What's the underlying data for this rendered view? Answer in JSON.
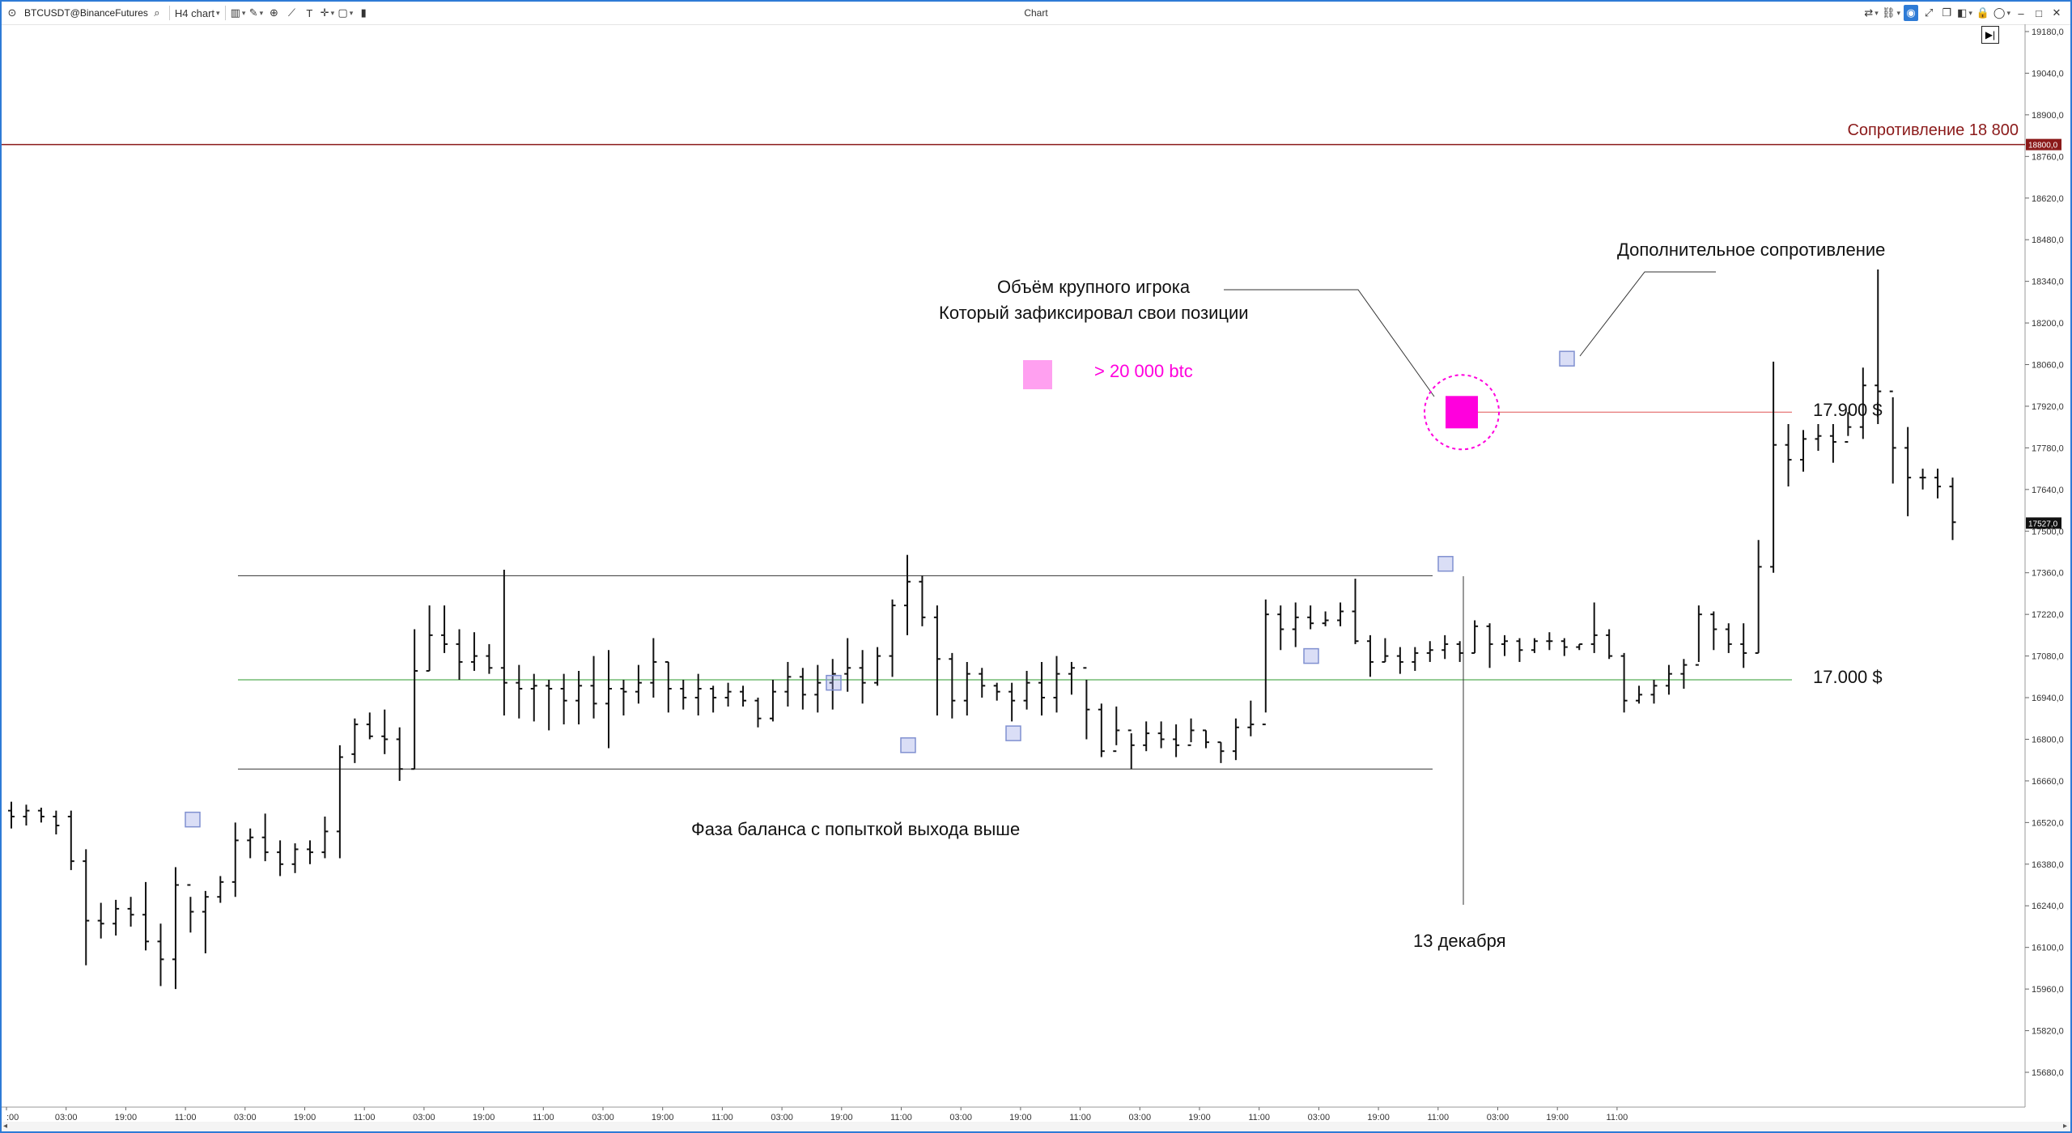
{
  "toolbar": {
    "symbol": "BTCUSDT@BinanceFutures",
    "timeframe": "H4 chart",
    "window_title": "Chart"
  },
  "annotations": {
    "resistance_label": "Сопротивление 18 800",
    "resistance_price_tag": "18800,0",
    "big_player_line1": "Объём крупного игрока",
    "big_player_line2": "Который зафиксировал свои позиции",
    "legend_volume": "> 20 000 btc",
    "extra_resistance": "Дополнительное сопротивление",
    "level_17900": "17.900 $",
    "level_17000": "17.000 $",
    "balance_phase": "Фаза баланса с попыткой выхода выше",
    "date_label": "13 декабря",
    "current_price_tag": "17527,0"
  },
  "colors": {
    "accent": "#2e7bd6",
    "resistance_line": "#8b1a1a",
    "red_level": "#e05555",
    "green_level": "#2e9a2e",
    "big_volume": "#ff00dd",
    "legend_volume": "#ffa0f0",
    "volume_marker": "#8090d0"
  },
  "chart_data": {
    "type": "ohlc",
    "interval": "H4",
    "y_axis_ticks": [
      "19180,0",
      "19040,0",
      "18900,0",
      "18760,0",
      "18620,0",
      "18480,0",
      "18340,0",
      "18200,0",
      "18060,0",
      "17920,0",
      "17780,0",
      "17640,0",
      "17500,0",
      "17360,0",
      "17220,0",
      "17080,0",
      "16940,0",
      "16800,0",
      "16660,0",
      "16520,0",
      "16380,0",
      "16240,0",
      "16100,0",
      "15960,0",
      "15820,0",
      "15680,0"
    ],
    "x_axis_ticks": [
      ":00",
      "03:00",
      "19:00",
      "11:00",
      "03:00",
      "19:00",
      "11:00",
      "03:00",
      "19:00",
      "11:00",
      "03:00",
      "19:00",
      "11:00",
      "03:00",
      "19:00",
      "11:00",
      "03:00",
      "19:00",
      "11:00",
      "03:00",
      "19:00",
      "11:00",
      "03:00",
      "19:00",
      "11:00",
      "03:00",
      "19:00",
      "11:00"
    ],
    "levels": [
      {
        "price": 18800,
        "name": "Сопротивление 18 800"
      },
      {
        "price": 17900,
        "name": "17.900 $"
      },
      {
        "price": 17000,
        "name": "17.000 $"
      }
    ],
    "balance_range": {
      "high": 17350,
      "low": 16700
    },
    "bars": [
      [
        16560,
        16590,
        16500,
        16540
      ],
      [
        16540,
        16580,
        16510,
        16560
      ],
      [
        16560,
        16570,
        16520,
        16540
      ],
      [
        16540,
        16560,
        16480,
        16510
      ],
      [
        16540,
        16560,
        16360,
        16390
      ],
      [
        16390,
        16430,
        16040,
        16190
      ],
      [
        16190,
        16250,
        16130,
        16180
      ],
      [
        16180,
        16260,
        16140,
        16230
      ],
      [
        16230,
        16270,
        16170,
        16210
      ],
      [
        16210,
        16320,
        16090,
        16120
      ],
      [
        16120,
        16180,
        15970,
        16060
      ],
      [
        16060,
        16370,
        15960,
        16310
      ],
      [
        16310,
        16270,
        16150,
        16220
      ],
      [
        16220,
        16290,
        16080,
        16270
      ],
      [
        16270,
        16340,
        16250,
        16320
      ],
      [
        16320,
        16520,
        16270,
        16460
      ],
      [
        16460,
        16500,
        16400,
        16470
      ],
      [
        16470,
        16550,
        16390,
        16420
      ],
      [
        16420,
        16460,
        16340,
        16380
      ],
      [
        16380,
        16450,
        16350,
        16430
      ],
      [
        16430,
        16460,
        16380,
        16420
      ],
      [
        16420,
        16540,
        16400,
        16490
      ],
      [
        16490,
        16780,
        16400,
        16740
      ],
      [
        16750,
        16870,
        16720,
        16850
      ],
      [
        16850,
        16890,
        16800,
        16810
      ],
      [
        16810,
        16900,
        16750,
        16800
      ],
      [
        16800,
        16840,
        16660,
        16700
      ],
      [
        16700,
        17170,
        16700,
        17030
      ],
      [
        17030,
        17250,
        17030,
        17150
      ],
      [
        17150,
        17250,
        17090,
        17120
      ],
      [
        17120,
        17170,
        17000,
        17060
      ],
      [
        17060,
        17160,
        17030,
        17080
      ],
      [
        17080,
        17120,
        17020,
        17040
      ],
      [
        17040,
        17370,
        16880,
        16990
      ],
      [
        16990,
        17050,
        16870,
        16970
      ],
      [
        16970,
        17020,
        16860,
        16980
      ],
      [
        16980,
        17000,
        16830,
        16970
      ],
      [
        16970,
        17020,
        16850,
        16930
      ],
      [
        16930,
        17030,
        16850,
        16980
      ],
      [
        16980,
        17080,
        16870,
        16920
      ],
      [
        16920,
        17100,
        16770,
        16970
      ],
      [
        16970,
        17000,
        16880,
        16960
      ],
      [
        16960,
        17050,
        16920,
        16990
      ],
      [
        16990,
        17140,
        16940,
        17060
      ],
      [
        17060,
        17060,
        16890,
        16970
      ],
      [
        16970,
        17000,
        16900,
        16940
      ],
      [
        16940,
        17020,
        16880,
        16970
      ],
      [
        16970,
        16980,
        16890,
        16940
      ],
      [
        16940,
        16990,
        16910,
        16960
      ],
      [
        16960,
        16980,
        16910,
        16930
      ],
      [
        16930,
        16940,
        16840,
        16870
      ],
      [
        16870,
        17000,
        16860,
        16960
      ],
      [
        16960,
        17060,
        16910,
        17010
      ],
      [
        17010,
        17040,
        16900,
        16950
      ],
      [
        16950,
        17050,
        16890,
        16990
      ],
      [
        16990,
        17070,
        16900,
        17020
      ],
      [
        17020,
        17140,
        16960,
        17040
      ],
      [
        17040,
        17100,
        16920,
        16990
      ],
      [
        16990,
        17110,
        16980,
        17080
      ],
      [
        17080,
        17270,
        17010,
        17250
      ],
      [
        17250,
        17420,
        17150,
        17330
      ],
      [
        17330,
        17350,
        17180,
        17210
      ],
      [
        17210,
        17250,
        16880,
        17070
      ],
      [
        17070,
        17090,
        16870,
        16930
      ],
      [
        16930,
        17060,
        16880,
        17020
      ],
      [
        17020,
        17040,
        16940,
        16980
      ],
      [
        16980,
        16990,
        16930,
        16960
      ],
      [
        16960,
        16990,
        16860,
        16930
      ],
      [
        16930,
        17030,
        16900,
        16990
      ],
      [
        16990,
        17060,
        16880,
        16940
      ],
      [
        16940,
        17080,
        16890,
        17020
      ],
      [
        17020,
        17060,
        16950,
        17040
      ],
      [
        17040,
        17000,
        16800,
        16900
      ],
      [
        16900,
        16920,
        16740,
        16760
      ],
      [
        16760,
        16910,
        16780,
        16830
      ],
      [
        16830,
        16820,
        16700,
        16780
      ],
      [
        16780,
        16860,
        16760,
        16820
      ],
      [
        16820,
        16860,
        16770,
        16800
      ],
      [
        16800,
        16850,
        16740,
        16780
      ],
      [
        16780,
        16870,
        16790,
        16830
      ],
      [
        16830,
        16830,
        16770,
        16790
      ],
      [
        16790,
        16790,
        16720,
        16760
      ],
      [
        16760,
        16870,
        16730,
        16840
      ],
      [
        16840,
        16930,
        16810,
        16850
      ],
      [
        16850,
        17270,
        16890,
        17220
      ],
      [
        17220,
        17250,
        17100,
        17170
      ],
      [
        17170,
        17260,
        17110,
        17210
      ],
      [
        17210,
        17250,
        17170,
        17190
      ],
      [
        17190,
        17230,
        17180,
        17200
      ],
      [
        17200,
        17260,
        17180,
        17230
      ],
      [
        17230,
        17340,
        17120,
        17130
      ],
      [
        17130,
        17150,
        17010,
        17060
      ],
      [
        17060,
        17140,
        17060,
        17080
      ],
      [
        17080,
        17110,
        17020,
        17060
      ],
      [
        17060,
        17110,
        17030,
        17090
      ],
      [
        17090,
        17130,
        17060,
        17100
      ],
      [
        17100,
        17150,
        17070,
        17120
      ],
      [
        17120,
        17130,
        17060,
        17090
      ],
      [
        17090,
        17200,
        17090,
        17180
      ],
      [
        17180,
        17190,
        17040,
        17120
      ],
      [
        17120,
        17150,
        17080,
        17130
      ],
      [
        17130,
        17140,
        17060,
        17100
      ],
      [
        17100,
        17140,
        17090,
        17130
      ],
      [
        17130,
        17160,
        17100,
        17130
      ],
      [
        17130,
        17140,
        17080,
        17110
      ],
      [
        17110,
        17120,
        17100,
        17120
      ],
      [
        17120,
        17260,
        17090,
        17150
      ],
      [
        17150,
        17170,
        17070,
        17080
      ],
      [
        17080,
        17090,
        16890,
        16930
      ],
      [
        16930,
        16980,
        16920,
        16950
      ],
      [
        16950,
        17000,
        16920,
        16980
      ],
      [
        16980,
        17050,
        16950,
        17020
      ],
      [
        17020,
        17070,
        16970,
        17050
      ],
      [
        17050,
        17250,
        17060,
        17220
      ],
      [
        17220,
        17230,
        17100,
        17170
      ],
      [
        17170,
        17190,
        17090,
        17120
      ],
      [
        17120,
        17190,
        17040,
        17090
      ],
      [
        17090,
        17470,
        17090,
        17380
      ],
      [
        17380,
        18070,
        17360,
        17790
      ],
      [
        17790,
        17860,
        17650,
        17740
      ],
      [
        17740,
        17840,
        17700,
        17810
      ],
      [
        17810,
        17860,
        17770,
        17820
      ],
      [
        17820,
        17860,
        17730,
        17800
      ],
      [
        17800,
        17900,
        17820,
        17850
      ],
      [
        17850,
        18050,
        17810,
        17990
      ],
      [
        17990,
        18380,
        17860,
        17970
      ],
      [
        17970,
        17950,
        17660,
        17780
      ],
      [
        17780,
        17850,
        17550,
        17680
      ],
      [
        17680,
        17710,
        17640,
        17680
      ],
      [
        17680,
        17710,
        17610,
        17650
      ],
      [
        17650,
        17680,
        17470,
        17530
      ]
    ]
  }
}
